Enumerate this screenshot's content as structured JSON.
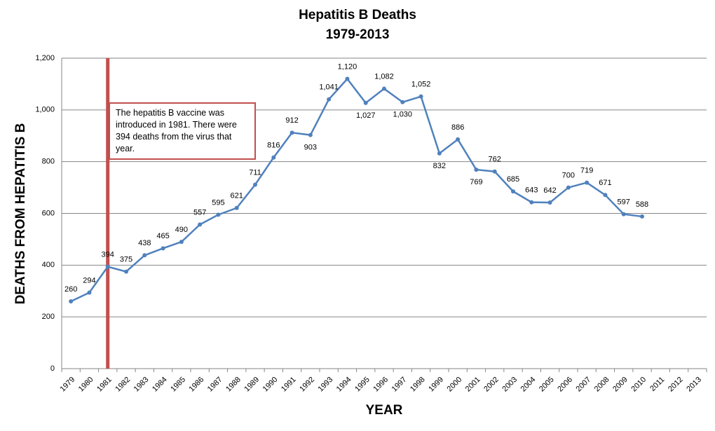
{
  "chart_data": {
    "type": "line",
    "title": "Hepatitis B Deaths",
    "subtitle": "1979-2013",
    "x_label": "YEAR",
    "y_label": "DEATHS FROM HEPATITIS B",
    "categories": [
      "1979",
      "1980",
      "1981",
      "1982",
      "1983",
      "1984",
      "1985",
      "1986",
      "1987",
      "1988",
      "1989",
      "1990",
      "1991",
      "1992",
      "1993",
      "1994",
      "1995",
      "1996",
      "1997",
      "1998",
      "1999",
      "2000",
      "2001",
      "2002",
      "2003",
      "2004",
      "2005",
      "2006",
      "2007",
      "2008",
      "2009",
      "2010",
      "2011",
      "2012",
      "2013"
    ],
    "values": [
      260,
      294,
      394,
      375,
      438,
      465,
      490,
      557,
      595,
      621,
      711,
      816,
      912,
      903,
      1041,
      1120,
      1027,
      1082,
      1030,
      1052,
      832,
      886,
      769,
      762,
      685,
      643,
      642,
      700,
      719,
      671,
      597,
      588,
      null,
      null,
      null
    ],
    "value_labels": [
      "260",
      "294",
      "394",
      "375",
      "438",
      "465",
      "490",
      "557",
      "595",
      "621",
      "711",
      "816",
      "912",
      "903",
      "1,041",
      "1,120",
      "1,027",
      "1,082",
      "1,030",
      "1,052",
      "832",
      "886",
      "769",
      "762",
      "685",
      "643",
      "642",
      "700",
      "719",
      "671",
      "597",
      "588",
      null,
      null,
      null
    ],
    "color": "#4f81bd",
    "ylim": [
      0,
      1200
    ],
    "yticks": [
      0,
      200,
      400,
      600,
      800,
      {
        "value": 1000,
        "label": "1,000"
      },
      {
        "value": 1200,
        "label": "1,200"
      }
    ],
    "grid": true,
    "annotation": {
      "x": "1981",
      "color": "#c0504d",
      "text": "The hepatitis B vaccine was introduced in 1981. There were 394 deaths from the virus that year."
    }
  }
}
